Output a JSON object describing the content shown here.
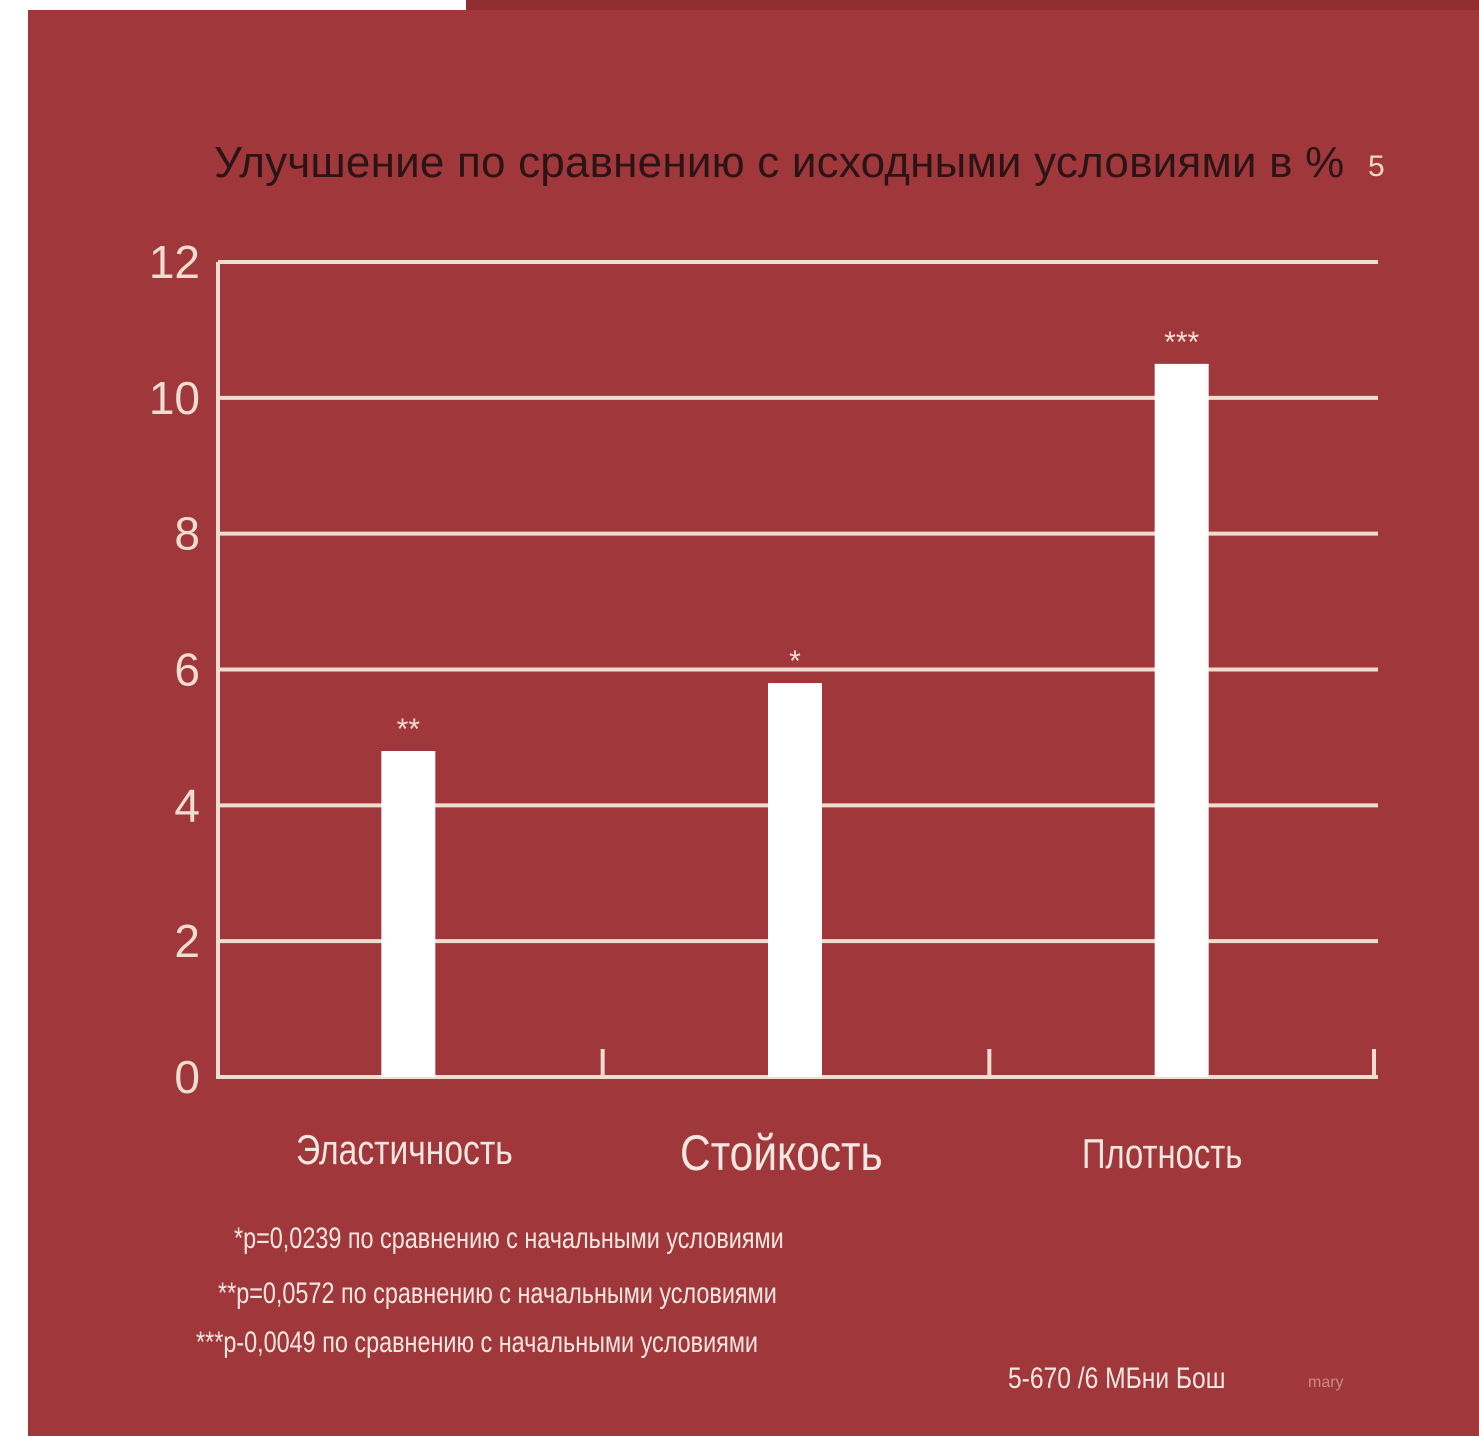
{
  "chart_data": {
    "type": "bar",
    "title": "Улучшение по сравнению с исходными условиями в %",
    "title_suffix": "5",
    "categories": [
      "Эластичность",
      "Стойкость",
      "Плотность"
    ],
    "values": [
      4.8,
      5.8,
      10.5
    ],
    "bar_labels": [
      "**",
      "*",
      "***"
    ],
    "yticks": [
      "0",
      "2",
      "4",
      "6",
      "8",
      "10",
      "12"
    ],
    "ylim": [
      0,
      12
    ],
    "grid": true,
    "xlabel": "",
    "ylabel": "",
    "colors": {
      "background": "#a0373a",
      "bars": "#ffffff",
      "axis": "#f1dcd2",
      "title": "#2a1416"
    }
  },
  "footnotes": [
    "*p=0,0239 по сравнению с начальными условиями",
    "**p=0,0572 по сравнению с начальными условиями",
    "***p-0,0049 по сравнению с начальными условиями"
  ],
  "source": "5-670 /6 МБни Бош",
  "source_small": "mary"
}
